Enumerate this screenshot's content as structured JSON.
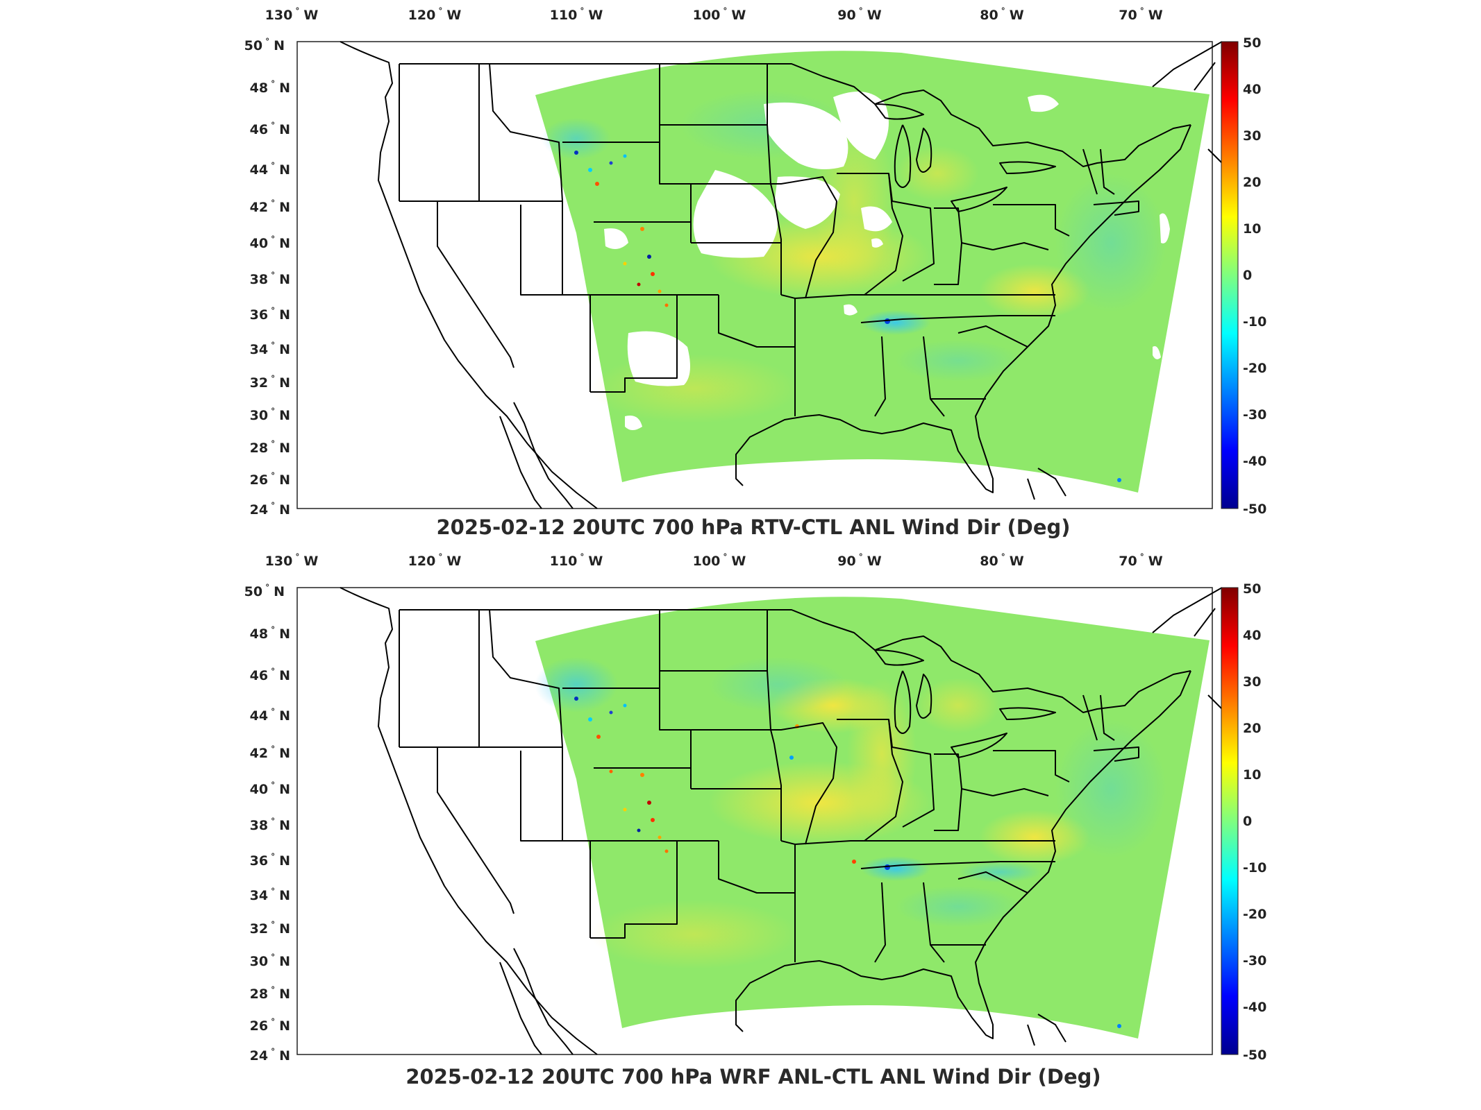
{
  "panels": [
    {
      "title": "2025-02-12 20UTC 700 hPa RTV-CTL ANL Wind Dir (Deg)",
      "has_gaps": true
    },
    {
      "title": "2025-02-12 20UTC 700 hPa WRF ANL-CTL ANL Wind Dir (Deg)",
      "has_gaps": false
    }
  ],
  "lon_labels": [
    "130",
    "120",
    "110",
    "100",
    "90",
    "80",
    "70"
  ],
  "lon_suffix": "W",
  "lat_labels": [
    "50",
    "48",
    "46",
    "44",
    "42",
    "40",
    "38",
    "36",
    "34",
    "32",
    "30",
    "28",
    "26",
    "24"
  ],
  "lat_suffix": "N",
  "colorbar": {
    "ticks": [
      "50",
      "40",
      "30",
      "20",
      "10",
      "0",
      "-10",
      "-20",
      "-30",
      "-40",
      "-50"
    ],
    "colormap": "jet",
    "range": [
      -50,
      50
    ]
  },
  "colors": {
    "field_base": "#8fe86a",
    "field_alt": "#c6ee5a",
    "field_cool": "#5fe0a8",
    "missing": "#ffffff",
    "boundary": "#000000"
  }
}
